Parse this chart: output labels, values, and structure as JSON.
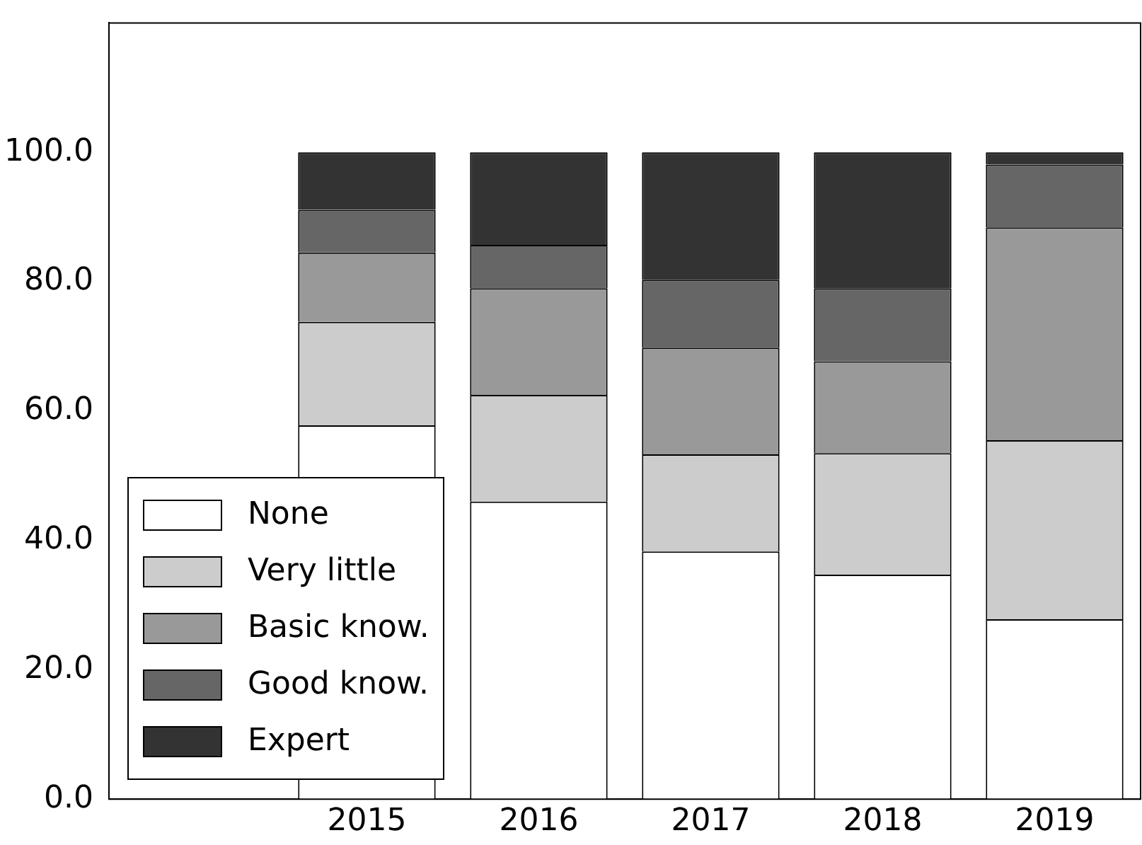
{
  "chart_data": {
    "type": "bar",
    "stacked": true,
    "categories": [
      null,
      "2015",
      "2016",
      "2017",
      "2018",
      "2019"
    ],
    "series": [
      {
        "name": "None",
        "color": "#ffffff",
        "values": [
          0,
          57.8,
          46,
          38.3,
          34.7,
          27.8
        ]
      },
      {
        "name": "Very little",
        "color": "#cccccc",
        "values": [
          0,
          16,
          16.5,
          15,
          18.8,
          27.7
        ]
      },
      {
        "name": "Basic know.",
        "color": "#999999",
        "values": [
          0,
          10.7,
          16.5,
          16.5,
          14.2,
          32.9
        ]
      },
      {
        "name": "Good know.",
        "color": "#666666",
        "values": [
          0,
          6.6,
          6.7,
          10.5,
          11.3,
          9.7
        ]
      },
      {
        "name": "Expert",
        "color": "#333333",
        "values": [
          0,
          8.9,
          14.3,
          19.7,
          21,
          1.9
        ]
      }
    ],
    "ylim": [
      0,
      120
    ],
    "yticks": [
      {
        "value": 0,
        "label": "0.0"
      },
      {
        "value": 20,
        "label": "20.0"
      },
      {
        "value": 40,
        "label": "40.0"
      },
      {
        "value": 60,
        "label": "60.0"
      },
      {
        "value": 80,
        "label": "80.0"
      },
      {
        "value": 100,
        "label": "100.0"
      }
    ],
    "grid": false,
    "legend": "bottom left"
  }
}
